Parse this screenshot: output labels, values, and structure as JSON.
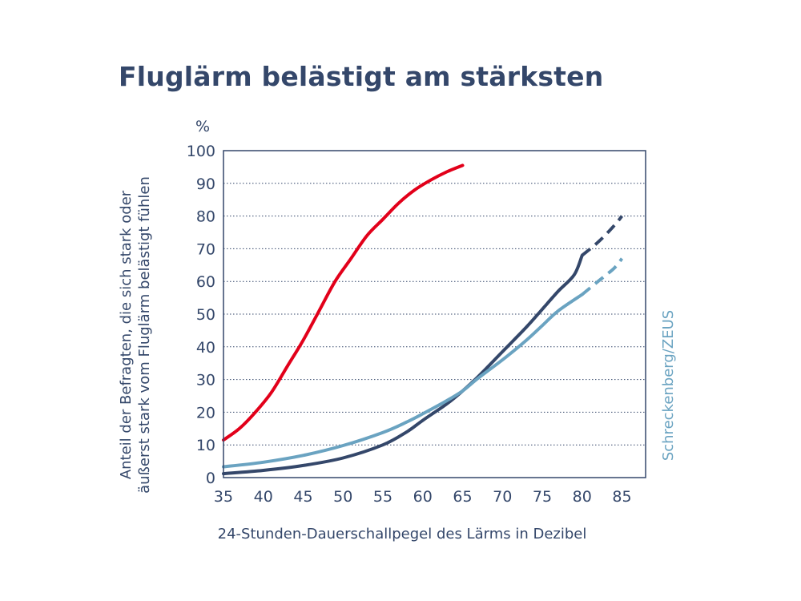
{
  "chart_data": {
    "type": "line",
    "title": "Fluglärm belästigt am stärksten",
    "xlabel": "24-Stunden-Dauerschallpegel des Lärms in Dezibel",
    "ylabel_line1": "Anteil der Befragten, die sich stark oder",
    "ylabel_line2": "äußerst stark vom Fluglärm belästigt fühlen",
    "y_unit": "%",
    "source": "Schreckenberg/ZEUS",
    "xlim": [
      35,
      88
    ],
    "ylim": [
      0,
      100
    ],
    "x_ticks": [
      35,
      40,
      45,
      50,
      55,
      60,
      65,
      70,
      75,
      80,
      85
    ],
    "y_ticks": [
      0,
      10,
      20,
      30,
      40,
      50,
      60,
      70,
      80,
      90,
      100
    ],
    "grid": "horizontal-dotted",
    "series": [
      {
        "color": "#e2001a",
        "points": [
          [
            35,
            11.5
          ],
          [
            37,
            15
          ],
          [
            39,
            20
          ],
          [
            41,
            26
          ],
          [
            43,
            34
          ],
          [
            45,
            42
          ],
          [
            47,
            51
          ],
          [
            49,
            60
          ],
          [
            51,
            67
          ],
          [
            53,
            74
          ],
          [
            55,
            79
          ],
          [
            57,
            84
          ],
          [
            59,
            88
          ],
          [
            61,
            91
          ],
          [
            63,
            93.5
          ],
          [
            65,
            95.5
          ]
        ],
        "dashed_from": null
      },
      {
        "color": "#34476a",
        "points": [
          [
            35,
            1.2
          ],
          [
            40,
            2.2
          ],
          [
            45,
            3.7
          ],
          [
            50,
            6
          ],
          [
            55,
            10
          ],
          [
            58,
            14
          ],
          [
            60,
            17.5
          ],
          [
            63,
            22.5
          ],
          [
            65,
            26.5
          ],
          [
            67,
            31
          ],
          [
            70,
            38.5
          ],
          [
            73,
            46
          ],
          [
            75,
            51.5
          ],
          [
            77,
            57
          ],
          [
            79,
            62
          ],
          [
            80,
            68
          ],
          [
            82,
            72
          ],
          [
            84,
            77
          ],
          [
            85,
            80
          ]
        ],
        "dashed_from": 80
      },
      {
        "color": "#6aa3c1",
        "points": [
          [
            35,
            3.3
          ],
          [
            40,
            4.7
          ],
          [
            45,
            6.8
          ],
          [
            50,
            9.8
          ],
          [
            55,
            13.8
          ],
          [
            58,
            17
          ],
          [
            60,
            19.5
          ],
          [
            63,
            23.5
          ],
          [
            65,
            26.5
          ],
          [
            67,
            30.5
          ],
          [
            70,
            36
          ],
          [
            73,
            42
          ],
          [
            75,
            46.5
          ],
          [
            77,
            51
          ],
          [
            80,
            56
          ],
          [
            82,
            60
          ],
          [
            84,
            64
          ],
          [
            85,
            67
          ]
        ],
        "dashed_from": 80
      }
    ]
  }
}
